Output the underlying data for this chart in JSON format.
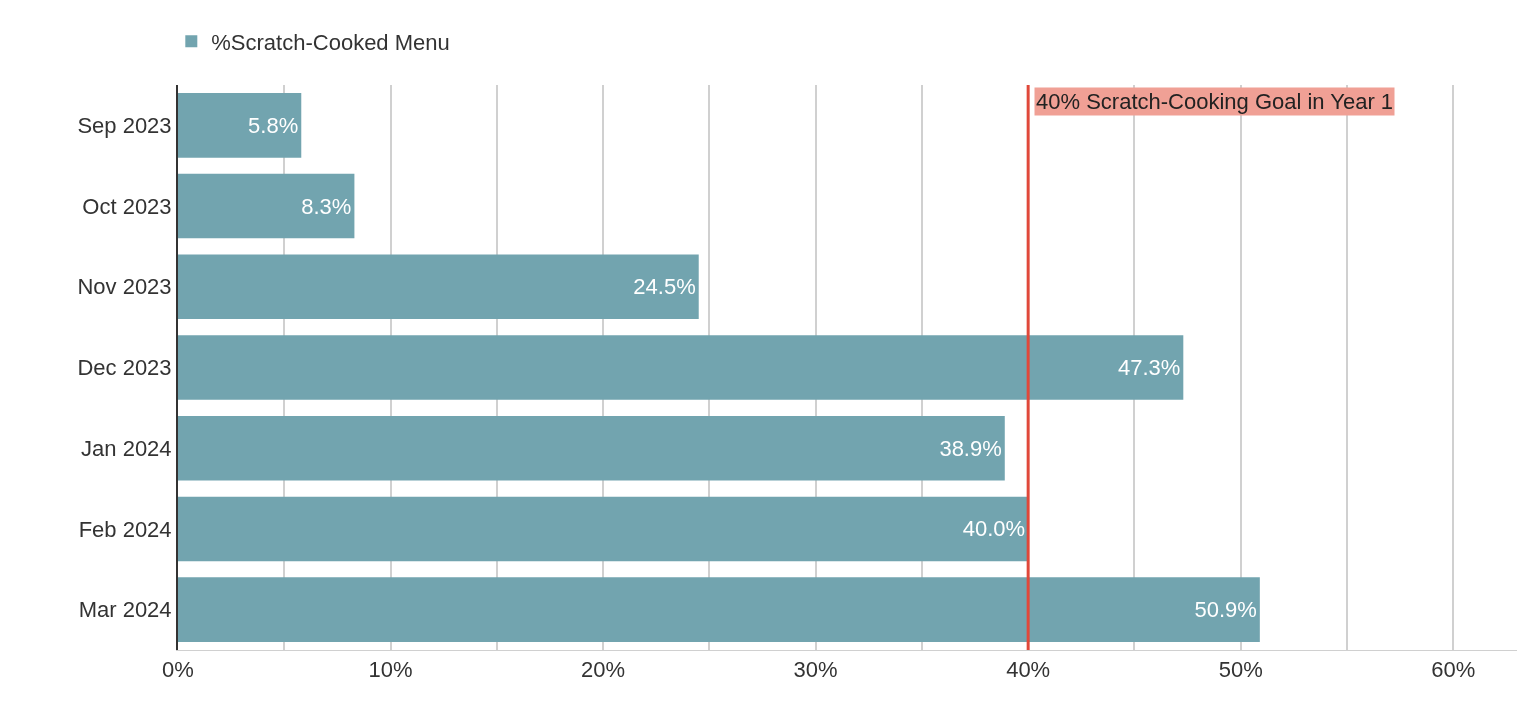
{
  "chart_data": {
    "type": "bar",
    "orientation": "horizontal",
    "categories": [
      "Sep 2023",
      "Oct 2023",
      "Nov 2023",
      "Dec 2023",
      "Jan 2024",
      "Feb 2024",
      "Mar 2024"
    ],
    "series": [
      {
        "name": "%Scratch-Cooked Menu",
        "color": "#72a4af",
        "values": [
          5.8,
          8.3,
          24.5,
          47.3,
          38.9,
          40.0,
          50.9
        ],
        "value_labels": [
          "5.8%",
          "8.3%",
          "24.5%",
          "47.3%",
          "38.9%",
          "40.0%",
          "50.9%"
        ]
      }
    ],
    "xlim": [
      0,
      63
    ],
    "xticks": [
      {
        "value": 0,
        "label": "0%"
      },
      {
        "value": 5,
        "label": null
      },
      {
        "value": 10,
        "label": "10%"
      },
      {
        "value": 15,
        "label": null
      },
      {
        "value": 20,
        "label": "20%"
      },
      {
        "value": 25,
        "label": null
      },
      {
        "value": 30,
        "label": "30%"
      },
      {
        "value": 35,
        "label": null
      },
      {
        "value": 40,
        "label": "40%"
      },
      {
        "value": 45,
        "label": null
      },
      {
        "value": 50,
        "label": "50%"
      },
      {
        "value": 55,
        "label": null
      },
      {
        "value": 60,
        "label": "60%"
      }
    ],
    "ref_lines": [
      {
        "axis": "x",
        "value": 40,
        "label": "40% Scratch-Cooking Goal in Year 1",
        "color": "#e0483a"
      }
    ],
    "grid": "x",
    "legend": "top left"
  }
}
